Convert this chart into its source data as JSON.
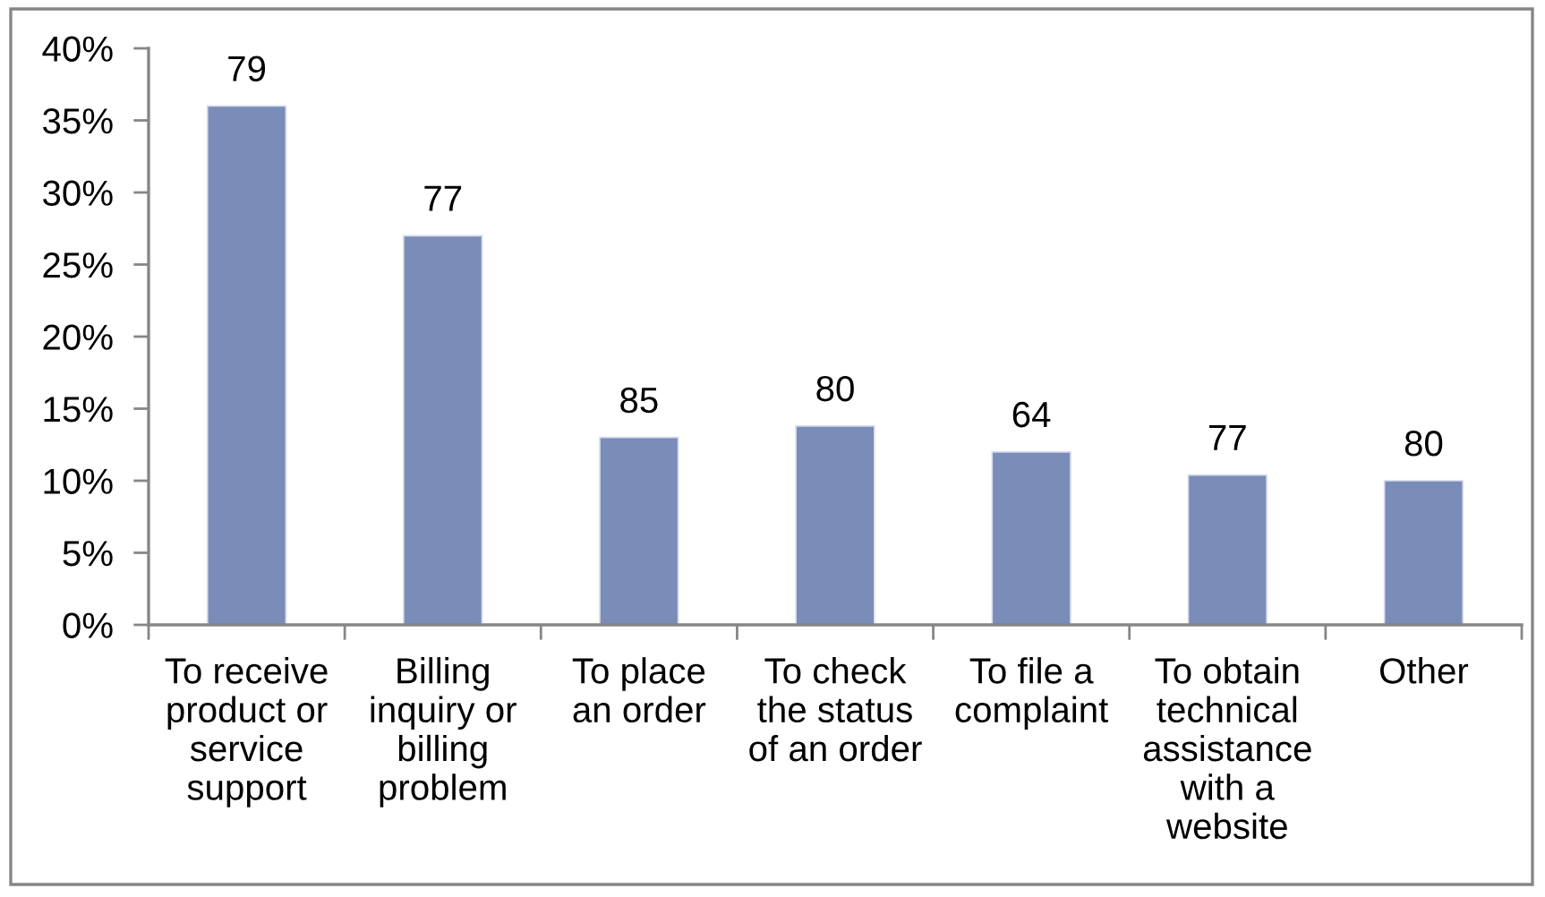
{
  "chart_data": {
    "type": "bar",
    "categories": [
      "To receive\nproduct or\nservice\nsupport",
      "Billing\ninquiry or\nbilling\nproblem",
      "To place\nan order",
      "To check\nthe status\nof an order",
      "To file a\ncomplaint",
      "To obtain\ntechnical\nassistance\nwith a\nwebsite",
      "Other"
    ],
    "values": [
      36,
      27,
      13,
      13.8,
      12,
      10.4,
      10
    ],
    "color": "#7a8cb8",
    "annotations": [
      {
        "text": "79",
        "x": "To receive\nproduct or\nservice\nsupport",
        "y": 36
      },
      {
        "text": "77",
        "x": "Billing\ninquiry or\nbilling\nproblem",
        "y": 27
      },
      {
        "text": "85",
        "x": "To place\nan order",
        "y": 13
      },
      {
        "text": "80",
        "x": "To check\nthe status\nof an order",
        "y": 13.8
      },
      {
        "text": "64",
        "x": "To file a\ncomplaint",
        "y": 12
      },
      {
        "text": "77",
        "x": "To obtain\ntechnical\nassistance\nwith a\nwebsite",
        "y": 10.4
      },
      {
        "text": "80",
        "x": "Other",
        "y": 10
      }
    ],
    "ylim": [
      0,
      40
    ],
    "yticks": [
      {
        "value": 0,
        "label": "0%"
      },
      {
        "value": 5,
        "label": "5%"
      },
      {
        "value": 10,
        "label": "10%"
      },
      {
        "value": 15,
        "label": "15%"
      },
      {
        "value": 20,
        "label": "20%"
      },
      {
        "value": 25,
        "label": "25%"
      },
      {
        "value": 30,
        "label": "30%"
      },
      {
        "value": 35,
        "label": "35%"
      },
      {
        "value": 40,
        "label": "40%"
      }
    ]
  }
}
